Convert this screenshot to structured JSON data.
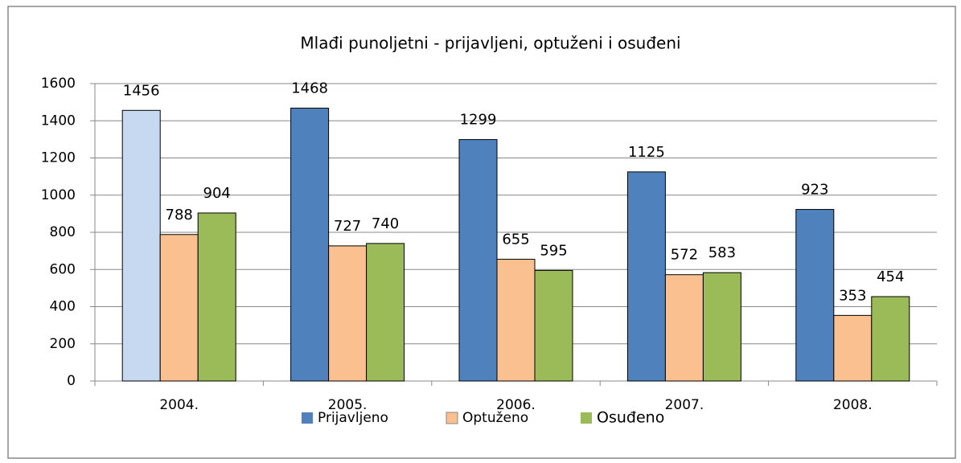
{
  "chart_data": {
    "type": "bar",
    "title": "Mlađi punoljetni - prijavljeni, optuženi i osuđeni",
    "categories": [
      "2004.",
      "2005.",
      "2006.",
      "2007.",
      "2008."
    ],
    "series": [
      {
        "name": "Prijavljeno",
        "color": "#4f81bd",
        "colors": [
          "#c6d9f1",
          "#4f81bd",
          "#4f81bd",
          "#4f81bd",
          "#4f81bd"
        ],
        "values": [
          1456,
          1468,
          1299,
          1125,
          923
        ]
      },
      {
        "name": "Optuženo",
        "color": "#fac090",
        "values": [
          788,
          727,
          655,
          572,
          353
        ]
      },
      {
        "name": "Osuđeno",
        "color": "#9bbb59",
        "values": [
          904,
          740,
          595,
          583,
          454
        ]
      }
    ],
    "ylim": [
      0,
      1600
    ],
    "yticks": [
      0,
      200,
      400,
      600,
      800,
      1000,
      1200,
      1400,
      1600
    ],
    "grid": true,
    "legend": "bottom"
  }
}
